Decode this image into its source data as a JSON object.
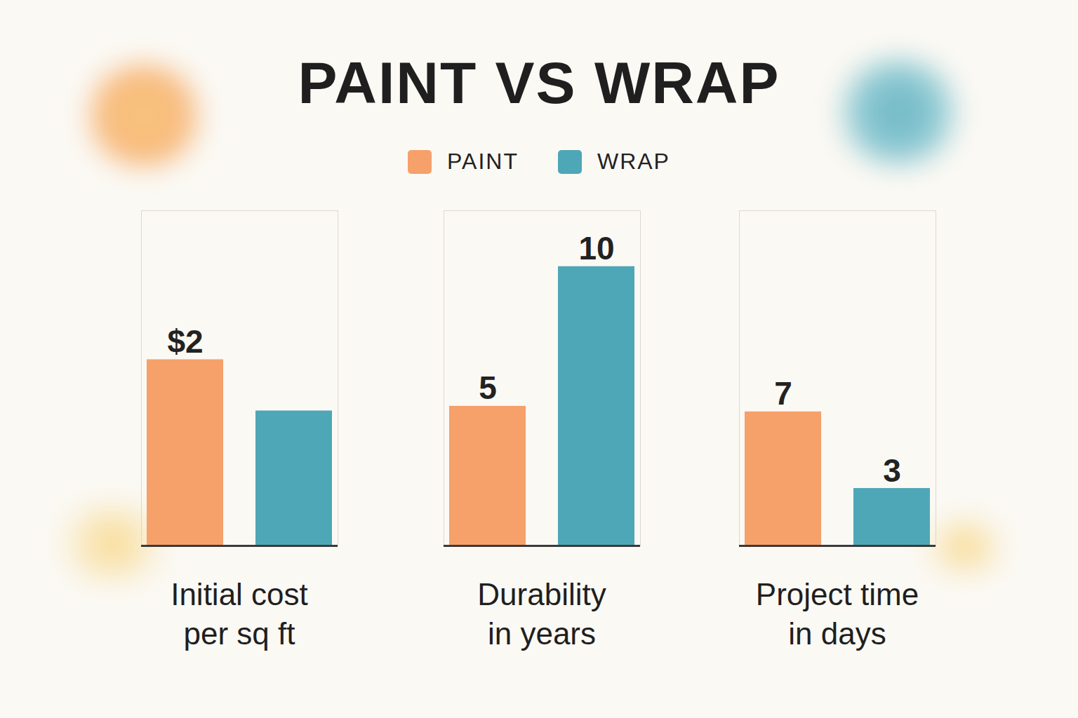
{
  "title": "PAINT VS WRAP",
  "legend": "top",
  "chart_data": [
    {
      "type": "bar",
      "xlabel": "Initial cost per sq ft",
      "categories": [
        null
      ],
      "series": [
        {
          "name": "PAINT",
          "color": "#f6a06a",
          "values": [
            2
          ],
          "value_labels": [
            "$2"
          ]
        },
        {
          "name": "WRAP",
          "color": "#4ea7b6",
          "values": [
            1.45
          ],
          "value_labels": [
            null
          ]
        }
      ],
      "ylim": [
        0,
        3.6
      ],
      "data_labels": true,
      "tick_labels": false
    },
    {
      "type": "bar",
      "xlabel": "Durability in years",
      "categories": [
        null
      ],
      "series": [
        {
          "name": "PAINT",
          "color": "#f6a06a",
          "values": [
            5
          ]
        },
        {
          "name": "WRAP",
          "color": "#4ea7b6",
          "values": [
            10
          ]
        }
      ],
      "ylim": [
        0,
        12
      ],
      "data_labels": true,
      "tick_labels": false
    },
    {
      "type": "bar",
      "xlabel": "Project time in days",
      "categories": [
        null
      ],
      "series": [
        {
          "name": "PAINT",
          "color": "#f6a06a",
          "values": [
            7
          ]
        },
        {
          "name": "WRAP",
          "color": "#4ea7b6",
          "values": [
            3
          ]
        }
      ],
      "ylim": [
        0,
        17.5
      ],
      "data_labels": true,
      "tick_labels": false
    }
  ]
}
